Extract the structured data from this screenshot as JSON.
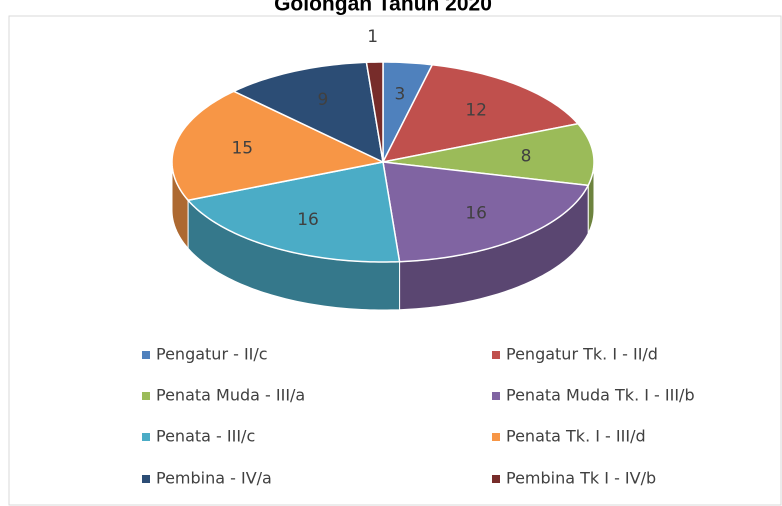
{
  "chart_data": {
    "type": "pie3d",
    "title": "Golongan Tahun 2020",
    "categories": [
      "Pengatur - II/c",
      "Pengatur Tk. I - II/d",
      "Penata Muda - III/a",
      "Penata Muda Tk. I - III/b",
      "Penata - III/c",
      "Penata Tk. I - III/d",
      "Pembina - IV/a",
      "Pembina Tk I - IV/b"
    ],
    "values": [
      3,
      12,
      8,
      16,
      16,
      15,
      9,
      1
    ],
    "colors": [
      "#4f81bd",
      "#c0504d",
      "#9bbb59",
      "#8064a2",
      "#4bacc6",
      "#f79646",
      "#2c4d75",
      "#772c2a"
    ],
    "legend": "bottom"
  }
}
